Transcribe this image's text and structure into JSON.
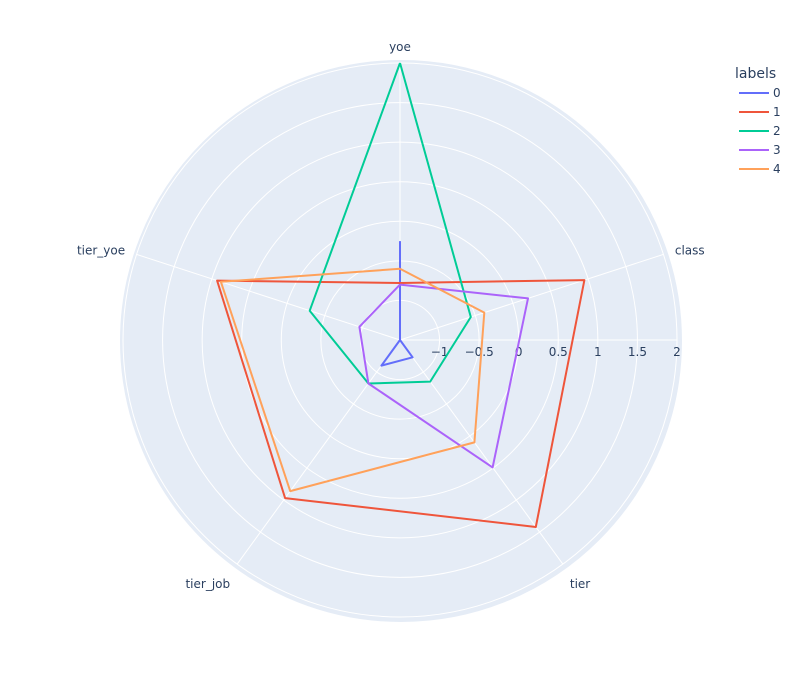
{
  "chart_data": {
    "type": "radar",
    "axes": [
      "yoe",
      "class",
      "tier",
      "tier_job",
      "tier_yoe"
    ],
    "radial_range": [
      -1.5,
      2
    ],
    "radial_ticks": [
      -1,
      -0.5,
      0,
      0.5,
      1,
      1.5,
      2
    ],
    "radial_tick_labels": [
      "−1",
      "−0.5",
      "0",
      "0.5",
      "1",
      "1.5",
      "2"
    ],
    "grid": true,
    "legend": {
      "title": "labels",
      "placement": "top-right"
    },
    "series": [
      {
        "name": "0",
        "color": "#636efa",
        "values": [
          -0.25,
          -1.5,
          -1.23,
          -1.1,
          -1.5
        ]
      },
      {
        "name": "1",
        "color": "#ef553b",
        "values": [
          -0.78,
          0.95,
          1.42,
          0.97,
          0.93
        ]
      },
      {
        "name": "2",
        "color": "#00cc96",
        "values": [
          2.0,
          -0.56,
          -0.85,
          -0.82,
          -0.3
        ]
      },
      {
        "name": "3",
        "color": "#ab63fa",
        "values": [
          -0.8,
          0.2,
          0.49,
          -0.82,
          -0.96
        ]
      },
      {
        "name": "4",
        "color": "#ffa15a",
        "values": [
          -0.6,
          -0.38,
          0.1,
          0.86,
          0.88
        ]
      }
    ]
  }
}
